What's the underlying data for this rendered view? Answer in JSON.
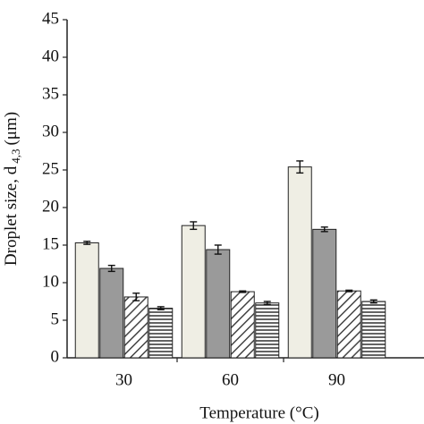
{
  "chart_data": {
    "type": "bar",
    "xlabel": "Temperature (°C)",
    "ylabel": "Droplet size, d",
    "ylabel_sub": "4,3",
    "ylabel_unit": "(μm)",
    "categories": [
      "30",
      "60",
      "90"
    ],
    "series": [
      {
        "color": "#efeee4",
        "pattern": "none",
        "values": [
          15.3,
          17.6,
          25.4
        ],
        "errors": [
          0.2,
          0.5,
          0.8
        ]
      },
      {
        "color": "#9a9a9a",
        "pattern": "none",
        "values": [
          11.9,
          14.4,
          17.1
        ],
        "errors": [
          0.4,
          0.6,
          0.3
        ]
      },
      {
        "color": "#ffffff",
        "pattern": "diagonal",
        "values": [
          8.1,
          8.8,
          8.9
        ],
        "errors": [
          0.5,
          0.1,
          0.1
        ]
      },
      {
        "color": "#ffffff",
        "pattern": "horizontal",
        "values": [
          6.6,
          7.3,
          7.5
        ],
        "errors": [
          0.2,
          0.2,
          0.2
        ]
      }
    ],
    "ylim": [
      0,
      45
    ],
    "yticks": [
      0,
      5,
      10,
      15,
      20,
      25,
      30,
      35,
      40,
      45
    ],
    "grid": false
  }
}
